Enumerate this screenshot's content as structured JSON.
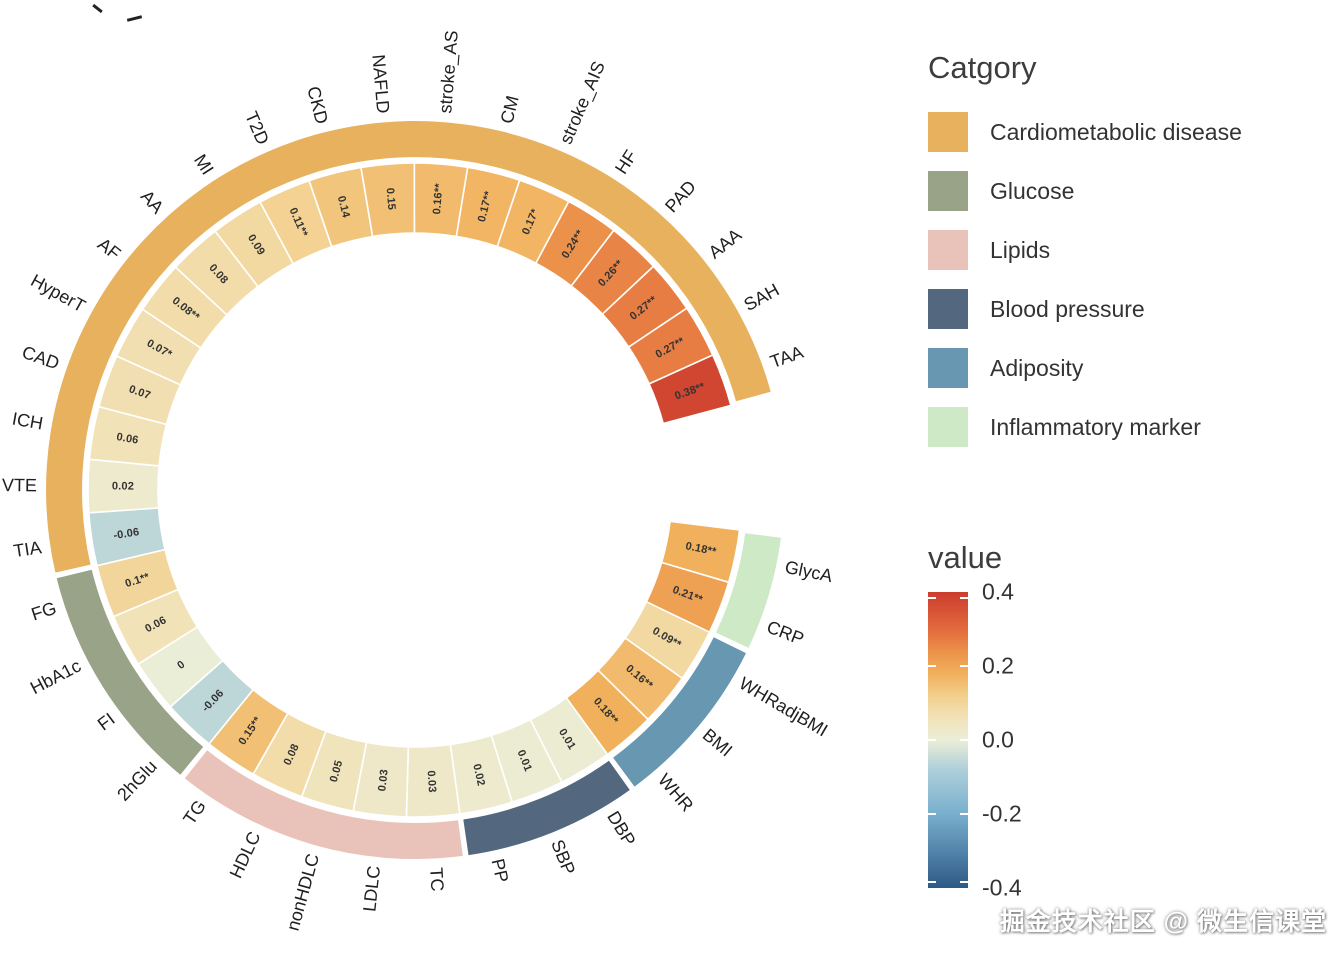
{
  "legend": {
    "title": "Catgory",
    "items": [
      {
        "label": "Cardiometabolic disease",
        "color": "#e7b15e"
      },
      {
        "label": "Glucose",
        "color": "#99a388"
      },
      {
        "label": "Lipids",
        "color": "#e9c3b9"
      },
      {
        "label": "Blood pressure",
        "color": "#53687e"
      },
      {
        "label": "Adiposity",
        "color": "#6897b1"
      },
      {
        "label": "Inflammatory marker",
        "color": "#cde9c6"
      }
    ]
  },
  "colorbar": {
    "title": "value",
    "ticks": [
      {
        "label": "0.4",
        "value": 0.4
      },
      {
        "label": "0.2",
        "value": 0.2
      },
      {
        "label": "0.0",
        "value": 0.0
      },
      {
        "label": "-0.2",
        "value": -0.2
      },
      {
        "label": "-0.4",
        "value": -0.4
      }
    ]
  },
  "watermark": "掘金技术社区 @ 微生信课堂",
  "chart_data": {
    "type": "circular-heatmap",
    "value_range": [
      -0.4,
      0.4
    ],
    "start_angle": 97,
    "end_angle": 435,
    "color_stops": [
      {
        "v": -0.4,
        "c": "#2d5986"
      },
      {
        "v": -0.2,
        "c": "#79afce"
      },
      {
        "v": -0.08,
        "c": "#aecfda"
      },
      {
        "v": 0.0,
        "c": "#ebeed7"
      },
      {
        "v": 0.06,
        "c": "#f1e2b8"
      },
      {
        "v": 0.12,
        "c": "#f3cf8c"
      },
      {
        "v": 0.18,
        "c": "#f0b05c"
      },
      {
        "v": 0.24,
        "c": "#eb9149"
      },
      {
        "v": 0.3,
        "c": "#e2693c"
      },
      {
        "v": 0.4,
        "c": "#cb3d2e"
      }
    ],
    "segments": [
      {
        "label": "GlycA",
        "display": "0.18**",
        "value": 0.18,
        "category": "Inflammatory marker"
      },
      {
        "label": "CRP",
        "display": "0.21**",
        "value": 0.21,
        "category": "Inflammatory marker"
      },
      {
        "label": "WHRadjBMI",
        "display": "0.09**",
        "value": 0.09,
        "category": "Adiposity"
      },
      {
        "label": "BMI",
        "display": "0.16**",
        "value": 0.16,
        "category": "Adiposity"
      },
      {
        "label": "WHR",
        "display": "0.18**",
        "value": 0.18,
        "category": "Adiposity"
      },
      {
        "label": "DBP",
        "display": "0.01",
        "value": 0.01,
        "category": "Blood pressure"
      },
      {
        "label": "SBP",
        "display": "0.01",
        "value": 0.01,
        "category": "Blood pressure"
      },
      {
        "label": "PP",
        "display": "0.02",
        "value": 0.02,
        "category": "Blood pressure"
      },
      {
        "label": "TC",
        "display": "0.03",
        "value": 0.03,
        "category": "Lipids"
      },
      {
        "label": "LDLC",
        "display": "0.03",
        "value": 0.03,
        "category": "Lipids"
      },
      {
        "label": "nonHDLC",
        "display": "0.05",
        "value": 0.05,
        "category": "Lipids"
      },
      {
        "label": "HDLC",
        "display": "0.08",
        "value": 0.08,
        "category": "Lipids"
      },
      {
        "label": "TG",
        "display": "0.15**",
        "value": 0.15,
        "category": "Lipids"
      },
      {
        "label": "2hGlu",
        "display": "-0.06",
        "value": -0.06,
        "category": "Glucose"
      },
      {
        "label": "FI",
        "display": "0",
        "value": 0.0,
        "category": "Glucose"
      },
      {
        "label": "HbA1c",
        "display": "0.06",
        "value": 0.06,
        "category": "Glucose"
      },
      {
        "label": "FG",
        "display": "0.1**",
        "value": 0.1,
        "category": "Glucose"
      },
      {
        "label": "TIA",
        "display": "-0.06",
        "value": -0.06,
        "category": "Cardiometabolic disease"
      },
      {
        "label": "VTE",
        "display": "0.02",
        "value": 0.02,
        "category": "Cardiometabolic disease"
      },
      {
        "label": "ICH",
        "display": "0.06",
        "value": 0.06,
        "category": "Cardiometabolic disease"
      },
      {
        "label": "CAD",
        "display": "0.07",
        "value": 0.07,
        "category": "Cardiometabolic disease"
      },
      {
        "label": "HyperT",
        "display": "0.07*",
        "value": 0.07,
        "category": "Cardiometabolic disease"
      },
      {
        "label": "AF",
        "display": "0.08**",
        "value": 0.08,
        "category": "Cardiometabolic disease"
      },
      {
        "label": "AA",
        "display": "0.08",
        "value": 0.08,
        "category": "Cardiometabolic disease"
      },
      {
        "label": "MI",
        "display": "0.09",
        "value": 0.09,
        "category": "Cardiometabolic disease"
      },
      {
        "label": "T2D",
        "display": "0.11**",
        "value": 0.11,
        "category": "Cardiometabolic disease"
      },
      {
        "label": "CKD",
        "display": "0.14",
        "value": 0.14,
        "category": "Cardiometabolic disease"
      },
      {
        "label": "NAFLD",
        "display": "0.15",
        "value": 0.15,
        "category": "Cardiometabolic disease"
      },
      {
        "label": "stroke_AS",
        "display": "0.16**",
        "value": 0.16,
        "category": "Cardiometabolic disease"
      },
      {
        "label": "CM",
        "display": "0.17**",
        "value": 0.17,
        "category": "Cardiometabolic disease"
      },
      {
        "label": "stroke_AIS",
        "display": "0.17*",
        "value": 0.17,
        "category": "Cardiometabolic disease"
      },
      {
        "label": "HF",
        "display": "0.24**",
        "value": 0.24,
        "category": "Cardiometabolic disease"
      },
      {
        "label": "PAD",
        "display": "0.26**",
        "value": 0.26,
        "category": "Cardiometabolic disease"
      },
      {
        "label": "AAA",
        "display": "0.27**",
        "value": 0.27,
        "category": "Cardiometabolic disease"
      },
      {
        "label": "SAH",
        "display": "0.27**",
        "value": 0.27,
        "category": "Cardiometabolic disease"
      },
      {
        "label": "TAA",
        "display": "0.38**",
        "value": 0.38,
        "category": "Cardiometabolic disease"
      }
    ]
  }
}
